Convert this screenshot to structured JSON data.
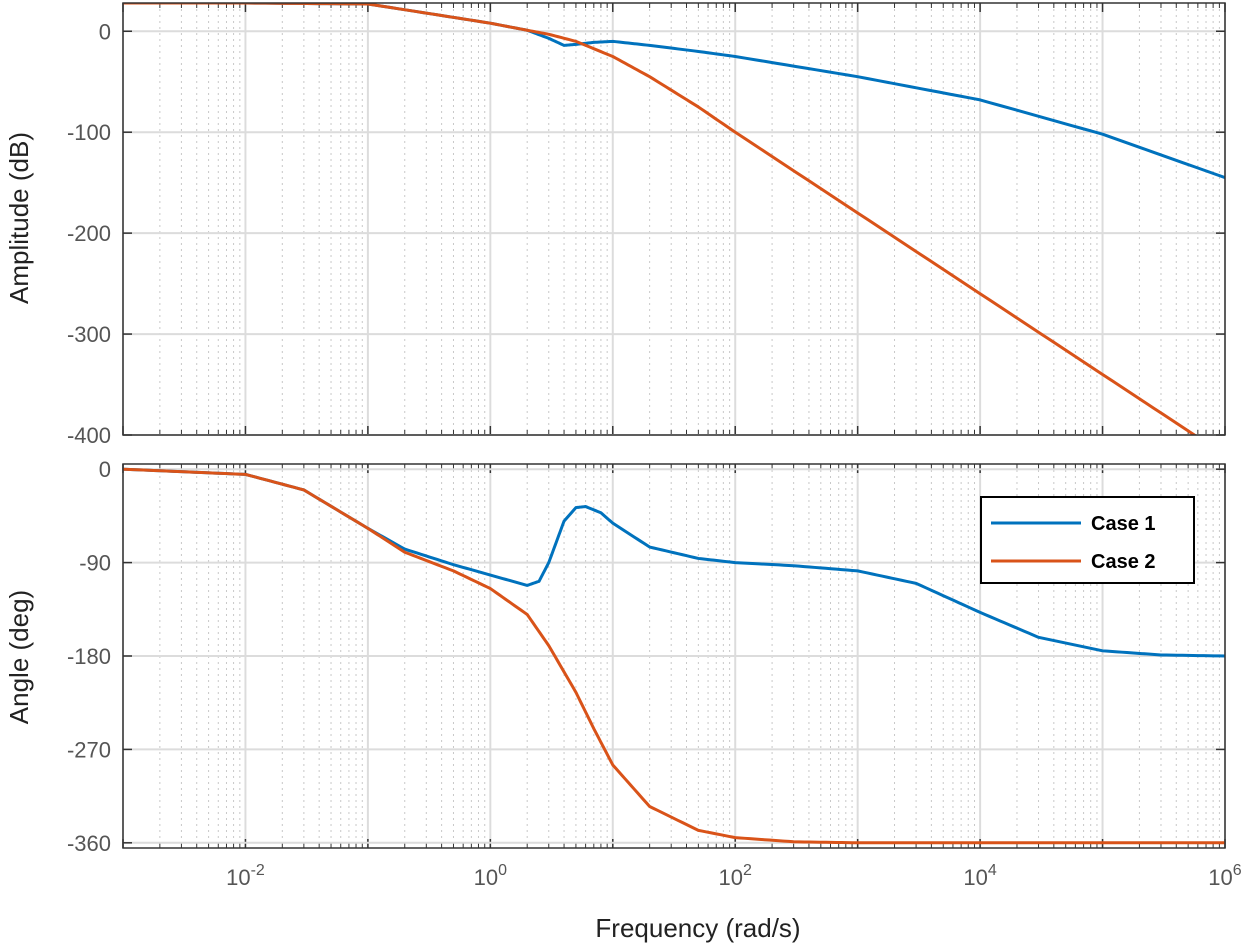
{
  "chart_data": [
    {
      "type": "line",
      "panel": "magnitude",
      "title": "",
      "xlabel": "",
      "ylabel": "Amplitude (dB)",
      "xscale": "log",
      "xlim": [
        0.001,
        1000000
      ],
      "ylim": [
        -400,
        28
      ],
      "yticks": [
        0,
        -100,
        -200,
        -300,
        -400
      ],
      "ytick_labels": [
        "0",
        "-100",
        "-200",
        "-300",
        "-400"
      ],
      "grid": true,
      "series": [
        {
          "name": "Case 1",
          "color": "#0072BD",
          "x": [
            0.001,
            0.01,
            0.1,
            0.3,
            1,
            2,
            3,
            4,
            5,
            7,
            10,
            20,
            50,
            100,
            1000,
            10000,
            100000,
            1000000
          ],
          "y": [
            28,
            28,
            27,
            18,
            8,
            1,
            -7,
            -14,
            -13,
            -11,
            -10,
            -14,
            -20,
            -25,
            -45,
            -68,
            -102,
            -145
          ]
        },
        {
          "name": "Case 2",
          "color": "#D95319",
          "x": [
            0.001,
            0.01,
            0.1,
            0.3,
            1,
            2,
            3,
            5,
            10,
            20,
            50,
            100,
            1000,
            10000,
            100000,
            1000000
          ],
          "y": [
            28,
            28,
            27,
            18,
            8,
            1,
            -3,
            -10,
            -25,
            -45,
            -75,
            -100,
            -180,
            -260,
            -340,
            -420
          ]
        }
      ]
    },
    {
      "type": "line",
      "panel": "phase",
      "title": "",
      "xlabel": "Frequency  (rad/s)",
      "ylabel": "Angle (deg)",
      "xscale": "log",
      "xlim": [
        0.001,
        1000000
      ],
      "ylim": [
        -365,
        5
      ],
      "yticks": [
        0,
        -90,
        -180,
        -270,
        -360
      ],
      "ytick_labels": [
        "0",
        "-90",
        "-180",
        "-270",
        "-360"
      ],
      "xticks": [
        0.01,
        1,
        100,
        10000,
        1000000
      ],
      "xtick_exponents": [
        "-2",
        "0",
        "2",
        "4",
        "6"
      ],
      "xtick_base": "10",
      "grid": true,
      "legend": "top-right",
      "series": [
        {
          "name": "Case 1",
          "color": "#0072BD",
          "x": [
            0.001,
            0.01,
            0.03,
            0.1,
            0.2,
            0.5,
            1,
            2,
            2.5,
            3,
            4,
            5,
            6,
            8,
            10,
            20,
            50,
            100,
            300,
            1000,
            3000,
            10000,
            30000,
            100000,
            300000,
            1000000
          ],
          "y": [
            0,
            -5,
            -20,
            -57,
            -77,
            -92,
            -102,
            -112,
            -108,
            -90,
            -50,
            -37,
            -36,
            -42,
            -52,
            -75,
            -86,
            -90,
            -93,
            -98,
            -110,
            -138,
            -162,
            -175,
            -179,
            -180
          ]
        },
        {
          "name": "Case 2",
          "color": "#D95319",
          "x": [
            0.001,
            0.01,
            0.03,
            0.1,
            0.2,
            0.5,
            1,
            2,
            3,
            5,
            7,
            10,
            20,
            50,
            100,
            300,
            1000,
            10000,
            100000,
            1000000
          ],
          "y": [
            0,
            -5,
            -20,
            -57,
            -80,
            -98,
            -115,
            -140,
            -170,
            -215,
            -250,
            -285,
            -325,
            -348,
            -355,
            -359,
            -360,
            -360,
            -360,
            -360
          ]
        }
      ]
    }
  ]
}
